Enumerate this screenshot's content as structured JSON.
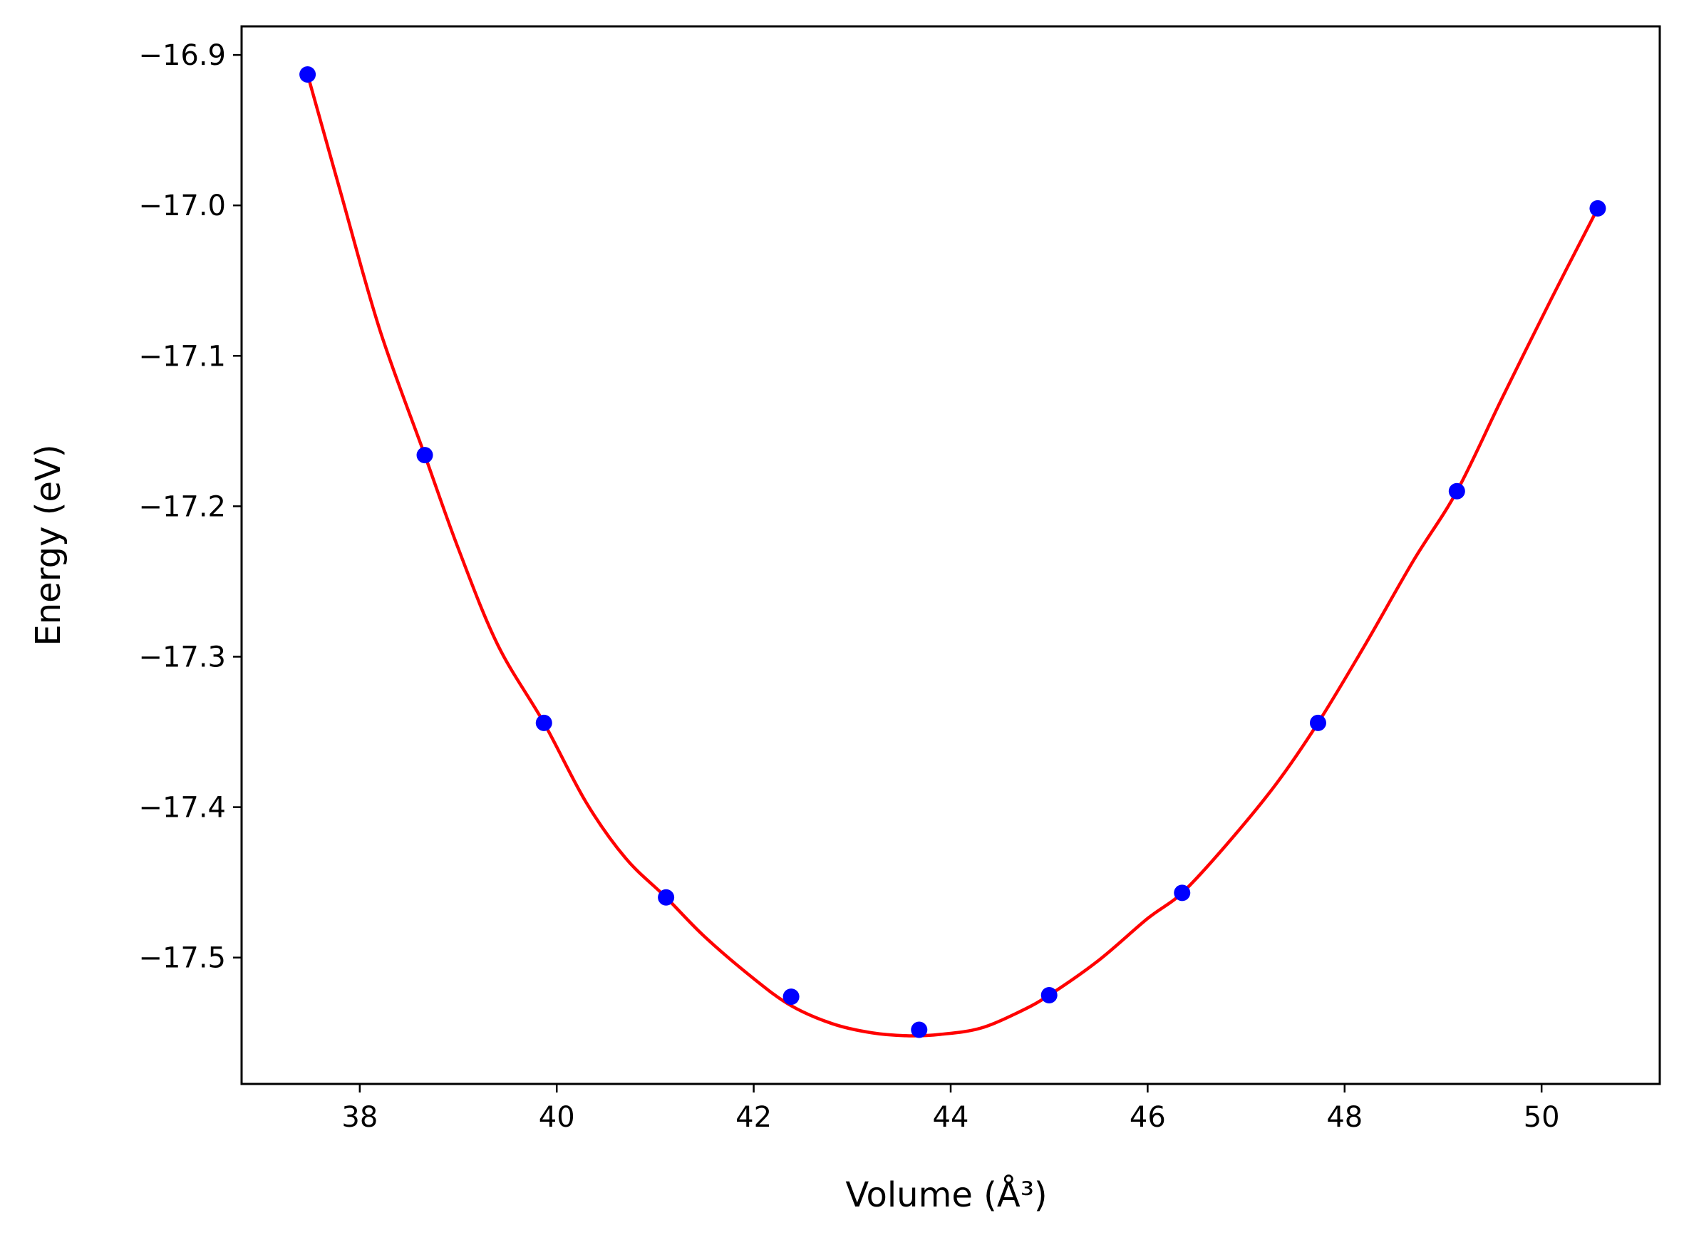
{
  "chart_data": {
    "type": "scatter",
    "title": "",
    "xlabel": "Volume (Å³)",
    "ylabel": "Energy (eV)",
    "xlim": [
      36.8,
      51.2
    ],
    "ylim": [
      -17.584,
      -16.881
    ],
    "x_ticks": [
      38,
      40,
      42,
      44,
      46,
      48,
      50
    ],
    "y_ticks": [
      -16.9,
      -17.0,
      -17.1,
      -17.2,
      -17.3,
      -17.4,
      -17.5
    ],
    "x_tick_labels": [
      "38",
      "40",
      "42",
      "44",
      "46",
      "48",
      "50"
    ],
    "y_tick_labels": [
      "−16.9",
      "−17.0",
      "−17.1",
      "−17.2",
      "−17.3",
      "−17.4",
      "−17.5"
    ],
    "grid": false,
    "legend": "none",
    "series": [
      {
        "kind": "points",
        "color": "#0000ff",
        "x": [
          37.47,
          38.66,
          39.87,
          41.11,
          42.38,
          43.68,
          45.0,
          46.35,
          47.73,
          49.14,
          50.57
        ],
        "y": [
          -16.913,
          -17.166,
          -17.344,
          -17.46,
          -17.526,
          -17.548,
          -17.525,
          -17.457,
          -17.344,
          -17.19,
          -17.002
        ]
      },
      {
        "kind": "fit-curve",
        "color": "#ff0000",
        "x": [
          37.47,
          37.8,
          38.2,
          38.66,
          39.0,
          39.4,
          39.87,
          40.3,
          40.7,
          41.11,
          41.5,
          42.0,
          42.38,
          42.8,
          43.2,
          43.58,
          43.9,
          44.3,
          44.7,
          45.0,
          45.5,
          46.0,
          46.35,
          46.8,
          47.3,
          47.73,
          48.2,
          48.7,
          49.14,
          49.6,
          50.1,
          50.57
        ],
        "y": [
          -16.913,
          -16.99,
          -17.082,
          -17.166,
          -17.228,
          -17.292,
          -17.344,
          -17.397,
          -17.434,
          -17.46,
          -17.486,
          -17.514,
          -17.532,
          -17.544,
          -17.55,
          -17.552,
          -17.551,
          -17.547,
          -17.536,
          -17.525,
          -17.502,
          -17.474,
          -17.457,
          -17.425,
          -17.385,
          -17.344,
          -17.293,
          -17.236,
          -17.19,
          -17.128,
          -17.062,
          -17.002
        ]
      }
    ]
  }
}
